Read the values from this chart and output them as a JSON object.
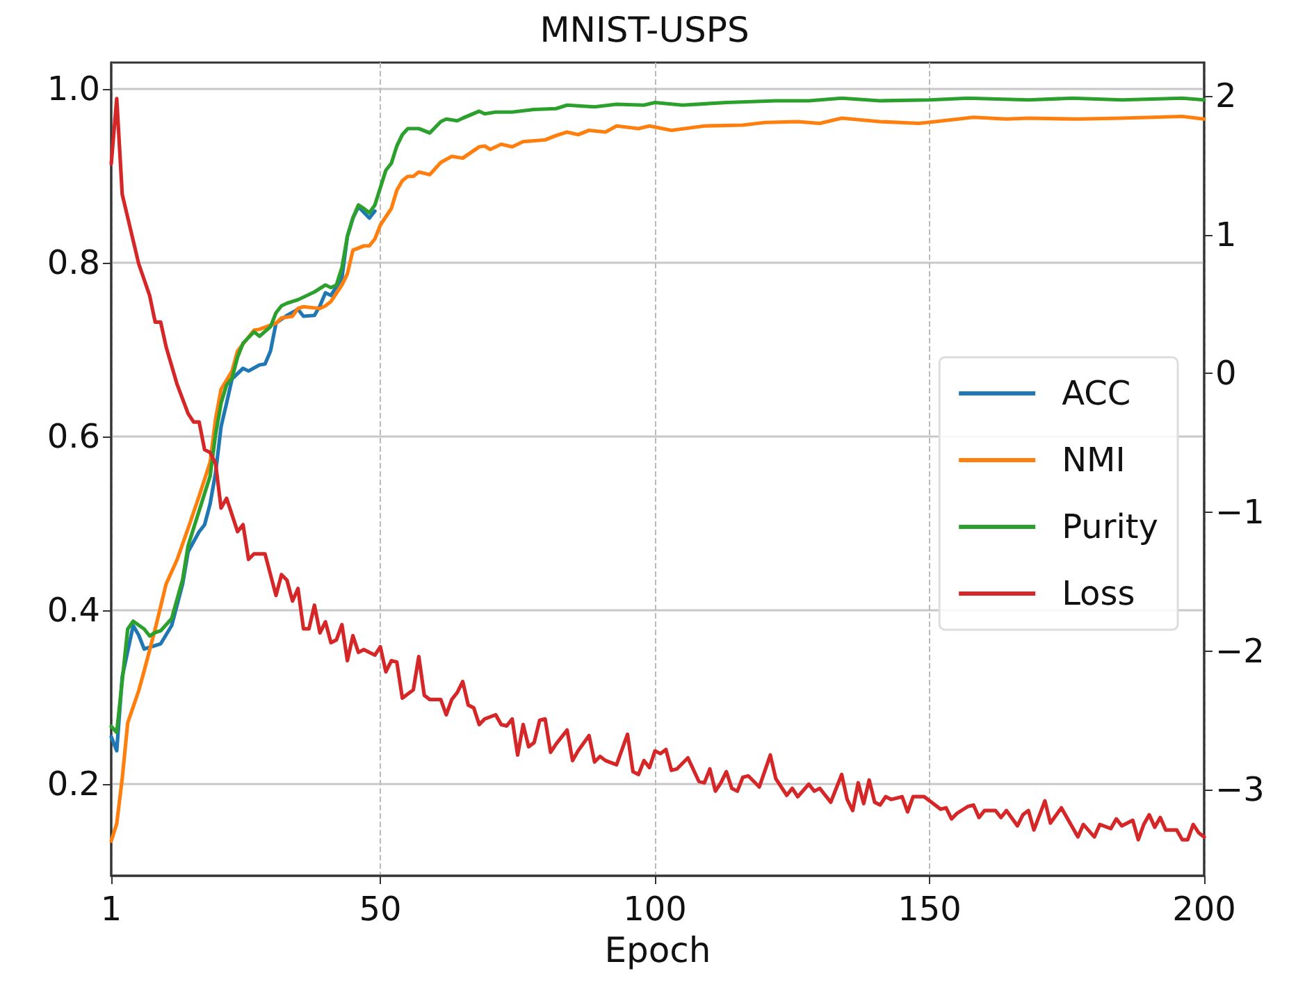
{
  "chart_data": {
    "type": "line",
    "title": "MNIST-USPS",
    "xlabel": "Epoch",
    "xlim": [
      1,
      200
    ],
    "xticks": [
      1,
      50,
      100,
      150,
      200
    ],
    "ylim": [
      0.094,
      1.03
    ],
    "yticks": [
      0.2,
      0.4,
      0.6,
      0.8,
      {
        "value": 1,
        "label": "1.0"
      }
    ],
    "y2lim": [
      -3.62,
      2.24
    ],
    "y2ticks": [
      {
        "value": -3,
        "label": "−3"
      },
      {
        "value": -2,
        "label": "−2"
      },
      {
        "value": -1,
        "label": "−1"
      },
      0,
      1,
      2
    ],
    "grid": true,
    "legend": "right",
    "series": [
      {
        "name": "ACC",
        "color": "#1f77b4",
        "x": [
          1,
          2,
          3,
          5,
          6,
          7,
          8,
          10,
          12,
          14,
          15,
          17,
          18,
          19,
          20,
          21,
          22,
          23,
          25,
          26,
          28,
          29,
          30,
          31,
          33,
          35,
          36,
          38,
          39,
          40,
          41,
          43,
          44,
          45,
          46,
          48,
          49
        ],
        "values": [
          0.254,
          0.238,
          0.323,
          0.382,
          0.371,
          0.355,
          0.357,
          0.361,
          0.382,
          0.43,
          0.467,
          0.49,
          0.498,
          0.522,
          0.558,
          0.611,
          0.638,
          0.666,
          0.678,
          0.675,
          0.682,
          0.683,
          0.698,
          0.73,
          0.739,
          0.746,
          0.738,
          0.739,
          0.75,
          0.765,
          0.762,
          0.782,
          0.83,
          0.851,
          0.864,
          0.851,
          0.859
        ]
      },
      {
        "name": "NMI",
        "color": "#ff7f0e",
        "x": [
          1,
          2,
          3,
          4,
          6,
          7,
          9,
          11,
          13,
          15,
          17,
          19,
          20,
          21,
          23,
          24,
          26,
          27,
          28,
          31,
          32,
          34,
          35,
          36,
          39,
          40,
          41,
          43,
          44,
          45,
          47,
          48,
          49,
          50,
          52,
          53,
          54,
          55,
          56,
          57,
          59,
          61,
          63,
          65,
          68,
          69,
          70,
          72,
          74,
          76,
          80,
          82,
          84,
          86,
          88,
          91,
          93,
          97,
          99,
          103,
          109,
          116,
          120,
          126,
          130,
          134,
          141,
          148,
          151,
          158,
          164,
          168,
          177,
          185,
          196,
          200
        ],
        "values": [
          0.134,
          0.154,
          0.206,
          0.27,
          0.307,
          0.33,
          0.378,
          0.43,
          0.458,
          0.494,
          0.531,
          0.57,
          0.62,
          0.654,
          0.675,
          0.698,
          0.714,
          0.722,
          0.723,
          0.73,
          0.736,
          0.738,
          0.747,
          0.749,
          0.747,
          0.75,
          0.755,
          0.774,
          0.787,
          0.814,
          0.819,
          0.819,
          0.827,
          0.843,
          0.862,
          0.883,
          0.894,
          0.899,
          0.899,
          0.904,
          0.901,
          0.915,
          0.922,
          0.92,
          0.933,
          0.934,
          0.93,
          0.936,
          0.933,
          0.939,
          0.941,
          0.946,
          0.95,
          0.947,
          0.952,
          0.95,
          0.957,
          0.954,
          0.957,
          0.952,
          0.957,
          0.958,
          0.961,
          0.962,
          0.96,
          0.966,
          0.962,
          0.96,
          0.962,
          0.967,
          0.965,
          0.966,
          0.965,
          0.966,
          0.968,
          0.965
        ]
      },
      {
        "name": "Purity",
        "color": "#2ca02c",
        "x": [
          1,
          2,
          4,
          5,
          7,
          8,
          9,
          10,
          12,
          14,
          15,
          17,
          19,
          20,
          21,
          22,
          23,
          24,
          25,
          27,
          28,
          30,
          31,
          32,
          33,
          35,
          37,
          38,
          40,
          41,
          42,
          43,
          44,
          45,
          46,
          47,
          48,
          49,
          50,
          51,
          52,
          53,
          54,
          55,
          57,
          59,
          61,
          62,
          64,
          65,
          68,
          69,
          71,
          74,
          78,
          82,
          84,
          89,
          93,
          98,
          100,
          105,
          113,
          122,
          128,
          134,
          141,
          150,
          157,
          168,
          176,
          185,
          196,
          200
        ],
        "values": [
          0.266,
          0.259,
          0.378,
          0.387,
          0.378,
          0.37,
          0.374,
          0.376,
          0.39,
          0.435,
          0.474,
          0.514,
          0.554,
          0.602,
          0.638,
          0.659,
          0.667,
          0.691,
          0.707,
          0.72,
          0.715,
          0.726,
          0.742,
          0.75,
          0.753,
          0.757,
          0.763,
          0.766,
          0.774,
          0.771,
          0.774,
          0.794,
          0.83,
          0.851,
          0.866,
          0.862,
          0.857,
          0.866,
          0.886,
          0.906,
          0.914,
          0.934,
          0.947,
          0.954,
          0.954,
          0.949,
          0.962,
          0.965,
          0.963,
          0.966,
          0.974,
          0.971,
          0.973,
          0.973,
          0.976,
          0.977,
          0.981,
          0.979,
          0.982,
          0.981,
          0.984,
          0.981,
          0.984,
          0.986,
          0.986,
          0.989,
          0.986,
          0.987,
          0.989,
          0.987,
          0.989,
          0.987,
          0.989,
          0.987
        ]
      },
      {
        "name": "Loss",
        "color": "#d62728",
        "axis": "y2",
        "x": [
          1,
          2,
          3,
          6,
          8,
          9,
          10,
          11,
          13,
          15,
          16,
          17,
          18,
          19,
          20,
          21,
          22,
          24,
          25,
          26,
          27,
          29,
          31,
          32,
          33,
          34,
          35,
          36,
          37,
          38,
          39,
          40,
          41,
          42,
          43,
          44,
          45,
          46,
          47,
          49,
          50,
          51,
          52,
          53,
          54,
          56,
          57,
          58,
          59,
          61,
          62,
          63,
          64,
          65,
          66,
          67,
          68,
          69,
          71,
          72,
          73,
          74,
          75,
          76,
          77,
          78,
          79,
          80,
          81,
          82,
          84,
          85,
          86,
          88,
          89,
          90,
          91,
          93,
          95,
          96,
          97,
          98,
          99,
          100,
          101,
          102,
          103,
          104,
          106,
          108,
          109,
          110,
          111,
          112,
          113,
          114,
          115,
          116,
          117,
          119,
          121,
          122,
          124,
          125,
          126,
          128,
          129,
          130,
          132,
          134,
          135,
          136,
          137,
          138,
          139,
          140,
          141,
          142,
          143,
          145,
          146,
          147,
          149,
          150,
          152,
          153,
          154,
          155,
          157,
          158,
          159,
          160,
          162,
          163,
          164,
          166,
          167,
          168,
          169,
          171,
          172,
          174,
          175,
          177,
          178,
          180,
          181,
          183,
          184,
          185,
          187,
          188,
          189,
          190,
          191,
          192,
          193,
          195,
          196,
          197,
          198,
          199,
          200
        ],
        "values": [
          1.51,
          1.98,
          1.29,
          0.79,
          0.56,
          0.37,
          0.37,
          0.19,
          -0.08,
          -0.29,
          -0.35,
          -0.35,
          -0.55,
          -0.57,
          -0.65,
          -0.97,
          -0.9,
          -1.14,
          -1.09,
          -1.34,
          -1.3,
          -1.3,
          -1.6,
          -1.45,
          -1.49,
          -1.64,
          -1.55,
          -1.84,
          -1.84,
          -1.67,
          -1.87,
          -1.79,
          -1.94,
          -1.92,
          -1.81,
          -2.07,
          -1.89,
          -2.01,
          -1.99,
          -2.03,
          -1.97,
          -2.15,
          -2.07,
          -2.08,
          -2.34,
          -2.28,
          -2.04,
          -2.32,
          -2.35,
          -2.35,
          -2.46,
          -2.35,
          -2.3,
          -2.22,
          -2.39,
          -2.41,
          -2.53,
          -2.49,
          -2.46,
          -2.53,
          -2.54,
          -2.49,
          -2.75,
          -2.53,
          -2.69,
          -2.66,
          -2.5,
          -2.49,
          -2.73,
          -2.67,
          -2.57,
          -2.79,
          -2.72,
          -2.61,
          -2.8,
          -2.76,
          -2.79,
          -2.82,
          -2.6,
          -2.87,
          -2.89,
          -2.79,
          -2.84,
          -2.72,
          -2.74,
          -2.71,
          -2.86,
          -2.85,
          -2.77,
          -2.94,
          -2.95,
          -2.85,
          -3.01,
          -2.95,
          -2.87,
          -2.99,
          -3.01,
          -2.91,
          -2.9,
          -2.98,
          -2.75,
          -2.92,
          -3.04,
          -2.99,
          -3.05,
          -2.96,
          -3.01,
          -2.99,
          -3.09,
          -2.89,
          -3.07,
          -3.15,
          -2.95,
          -3.1,
          -2.93,
          -3.09,
          -3.11,
          -3.05,
          -3.07,
          -3.05,
          -3.16,
          -3.05,
          -3.05,
          -3.08,
          -3.14,
          -3.13,
          -3.21,
          -3.17,
          -3.12,
          -3.11,
          -3.2,
          -3.15,
          -3.15,
          -3.2,
          -3.15,
          -3.26,
          -3.18,
          -3.15,
          -3.29,
          -3.08,
          -3.24,
          -3.13,
          -3.2,
          -3.34,
          -3.25,
          -3.34,
          -3.25,
          -3.28,
          -3.21,
          -3.26,
          -3.22,
          -3.36,
          -3.25,
          -3.18,
          -3.27,
          -3.2,
          -3.29,
          -3.29,
          -3.36,
          -3.36,
          -3.25,
          -3.31,
          -3.34
        ]
      }
    ]
  }
}
